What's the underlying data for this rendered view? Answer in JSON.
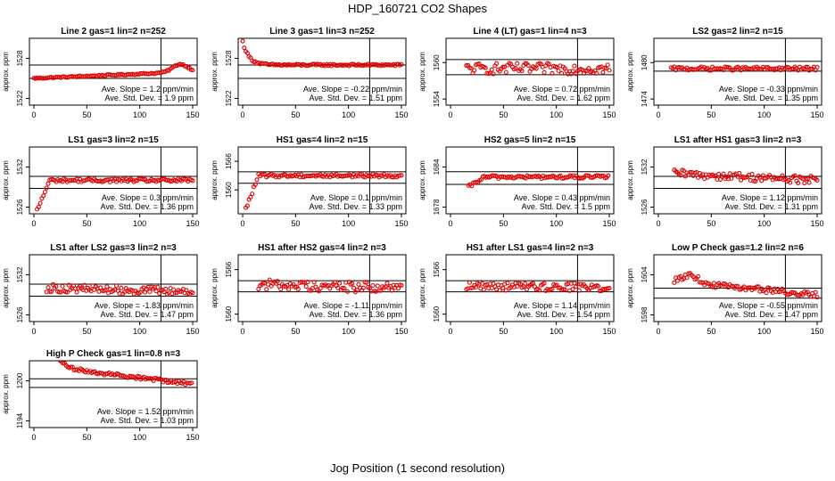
{
  "title": "HDP_160721  CO2 Shapes",
  "xlabel": "Jog Position (1 second resolution)",
  "colors": {
    "points": "#e00000",
    "axes": "#000000"
  },
  "panel_ylabel": "approx. ppm",
  "chart_data": [
    {
      "type": "scatter",
      "title": "Line 2 gas=1 lin=2 n=252",
      "xlim": [
        0,
        150
      ],
      "xticks": [
        0,
        50,
        100,
        150
      ],
      "ylim": [
        1521,
        1531
      ],
      "yticks": [
        1522,
        1528
      ],
      "vline": 120,
      "hlines": [
        1527,
        1525
      ],
      "x_start": 0,
      "y_start": 1525,
      "y_end": 1526,
      "profile": "bump",
      "noise": 0.1,
      "slope_text": "Ave. Slope = 1.2 ppm/min",
      "sd_text": "Ave. Std. Dev. = 1.9 ppm"
    },
    {
      "type": "scatter",
      "title": "Line 3 gas=1 lin=3 n=252",
      "xlim": [
        0,
        150
      ],
      "xticks": [
        0,
        50,
        100,
        150
      ],
      "ylim": [
        1521,
        1531
      ],
      "yticks": [
        1522,
        1528
      ],
      "vline": 120,
      "hlines": [
        1527,
        1525
      ],
      "x_start": 0,
      "y_start": 1527,
      "y_end": 1527,
      "profile": "decay_spike",
      "noise": 0.15,
      "slope_text": "Ave. Slope = -0.22 ppm/min",
      "sd_text": "Ave. Std. Dev. = 1.51 ppm"
    },
    {
      "type": "scatter",
      "title": "Line 4 (LT) gas=1 lin=4 n=3",
      "xlim": [
        0,
        150
      ],
      "xticks": [
        0,
        50,
        100,
        150
      ],
      "ylim": [
        1553,
        1564
      ],
      "yticks": [
        1554,
        1560
      ],
      "vline": 120,
      "hlines": [
        1560.5,
        1558
      ],
      "x_start": 15,
      "y_start": 1559,
      "y_end": 1559,
      "profile": "flat",
      "noise": 0.9,
      "slope_text": "Ave. Slope = 0.72 ppm/min",
      "sd_text": "Ave. Std. Dev. = 1.62 ppm"
    },
    {
      "type": "scatter",
      "title": "LS2 gas=2 lin=2 n=15",
      "xlim": [
        0,
        150
      ],
      "xticks": [
        0,
        50,
        100,
        150
      ],
      "ylim": [
        1473,
        1484
      ],
      "yticks": [
        1474,
        1480
      ],
      "vline": 120,
      "hlines": [
        1480.2,
        1478.6
      ],
      "x_start": 12,
      "y_start": 1479,
      "y_end": 1479,
      "profile": "flat",
      "noise": 0.3,
      "slope_text": "Ave. Slope = -0.33 ppm/min",
      "sd_text": "Ave. Std. Dev. = 1.35 ppm"
    },
    {
      "type": "scatter",
      "title": "LS1 gas=3 lin=2 n=15",
      "xlim": [
        0,
        150
      ],
      "xticks": [
        0,
        50,
        100,
        150
      ],
      "ylim": [
        1525,
        1535
      ],
      "yticks": [
        1526,
        1532
      ],
      "vline": 120,
      "hlines": [
        1530.6,
        1528.8
      ],
      "x_start": 3,
      "y_start": 1525.5,
      "y_end": 1530,
      "profile": "rise_early",
      "noise": 0.25,
      "slope_text": "Ave. Slope = 0.3 ppm/min",
      "sd_text": "Ave. Std. Dev. = 1.36 ppm"
    },
    {
      "type": "scatter",
      "title": "HS1 gas=4 lin=2 n=15",
      "xlim": [
        0,
        150
      ],
      "xticks": [
        0,
        50,
        100,
        150
      ],
      "ylim": [
        1555,
        1569
      ],
      "yticks": [
        1560,
        1566
      ],
      "vline": 120,
      "hlines": [
        1563.8,
        1561.4
      ],
      "x_start": 3,
      "y_start": 1556,
      "y_end": 1563,
      "profile": "rise_early",
      "noise": 0.35,
      "slope_text": "Ave. Slope = 0.1 ppm/min",
      "sd_text": "Ave. Std. Dev. = 1.33 ppm"
    },
    {
      "type": "scatter",
      "title": "HS2 gas=5 lin=2 n=15",
      "xlim": [
        0,
        150
      ],
      "xticks": [
        0,
        50,
        100,
        150
      ],
      "ylim": [
        1677,
        1687
      ],
      "yticks": [
        1678,
        1684
      ],
      "vline": 120,
      "hlines": [
        1683.3,
        1681.4
      ],
      "x_start": 17,
      "y_start": 1681,
      "y_end": 1682.5,
      "profile": "rise_mid",
      "noise": 0.25,
      "slope_text": "Ave. Slope = 0.43 ppm/min",
      "sd_text": "Ave. Std. Dev. = 1.5 ppm"
    },
    {
      "type": "scatter",
      "title": "LS1 after HS1 gas=3 lin=2 n=3",
      "xlim": [
        0,
        150
      ],
      "xticks": [
        0,
        50,
        100,
        150
      ],
      "ylim": [
        1525,
        1535
      ],
      "yticks": [
        1526,
        1532
      ],
      "vline": 120,
      "hlines": [
        1530.6,
        1528.8
      ],
      "x_start": 15,
      "y_start": 1531,
      "y_end": 1530,
      "profile": "flat",
      "noise": 0.6,
      "slope_text": "Ave. Slope = 1.12 ppm/min",
      "sd_text": "Ave. Std. Dev. = 1.31 ppm"
    },
    {
      "type": "scatter",
      "title": "LS1 after LS2 gas=3 lin=2 n=3",
      "xlim": [
        0,
        150
      ],
      "xticks": [
        0,
        50,
        100,
        150
      ],
      "ylim": [
        1525,
        1535
      ],
      "yticks": [
        1526,
        1532
      ],
      "vline": 120,
      "hlines": [
        1530.6,
        1528.8
      ],
      "x_start": 12,
      "y_start": 1530,
      "y_end": 1529.5,
      "profile": "flat",
      "noise": 0.6,
      "slope_text": "Ave. Slope = -1.83 ppm/min",
      "sd_text": "Ave. Std. Dev. = 1.47 ppm"
    },
    {
      "type": "scatter",
      "title": "HS1 after HS2 gas=4 lin=2 n=3",
      "xlim": [
        0,
        150
      ],
      "xticks": [
        0,
        50,
        100,
        150
      ],
      "ylim": [
        1559,
        1568
      ],
      "yticks": [
        1560,
        1566
      ],
      "vline": 120,
      "hlines": [
        1564.5,
        1563
      ],
      "x_start": 15,
      "y_start": 1564,
      "y_end": 1563.5,
      "profile": "flat",
      "noise": 0.7,
      "slope_text": "Ave. Slope = -1.11 ppm/min",
      "sd_text": "Ave. Std. Dev. = 1.36 ppm"
    },
    {
      "type": "scatter",
      "title": "HS1 after LS1 gas=4 lin=2 n=3",
      "xlim": [
        0,
        150
      ],
      "xticks": [
        0,
        50,
        100,
        150
      ],
      "ylim": [
        1559,
        1568
      ],
      "yticks": [
        1560,
        1566
      ],
      "vline": 120,
      "hlines": [
        1564.5,
        1563
      ],
      "x_start": 15,
      "y_start": 1563.8,
      "y_end": 1563.6,
      "profile": "flat",
      "noise": 0.55,
      "slope_text": "Ave. Slope = 1.14 ppm/min",
      "sd_text": "Ave. Std. Dev. = 1.54 ppm"
    },
    {
      "type": "scatter",
      "title": "Low P Check gas=1.2 lin=2 n=6",
      "xlim": [
        0,
        150
      ],
      "xticks": [
        0,
        50,
        100,
        150
      ],
      "ylim": [
        1597,
        1607
      ],
      "yticks": [
        1598,
        1604
      ],
      "vline": 120,
      "hlines": [
        1602,
        1600.5
      ],
      "x_start": 15,
      "y_start": 1603,
      "y_end": 1601,
      "profile": "bump",
      "noise": 0.4,
      "slope_text": "Ave. Slope = -0.55 ppm/min",
      "sd_text": "Ave. Std. Dev. = 1.47 ppm"
    },
    {
      "type": "scatter",
      "title": "High P Check gas=1 lin=0.8 n=3",
      "xlim": [
        0,
        150
      ],
      "xticks": [
        0,
        50,
        100,
        150
      ],
      "ylim": [
        1193,
        1203
      ],
      "yticks": [
        1194,
        1200
      ],
      "vline": 120,
      "hlines": [
        1200.3,
        1199
      ],
      "x_start": 20,
      "y_start": 1202,
      "y_end": 1199.5,
      "profile": "decay",
      "noise": 0.25,
      "slope_text": "Ave. Slope = 1.52 ppm/min",
      "sd_text": "Ave. Std. Dev. = 1.03 ppm"
    }
  ]
}
